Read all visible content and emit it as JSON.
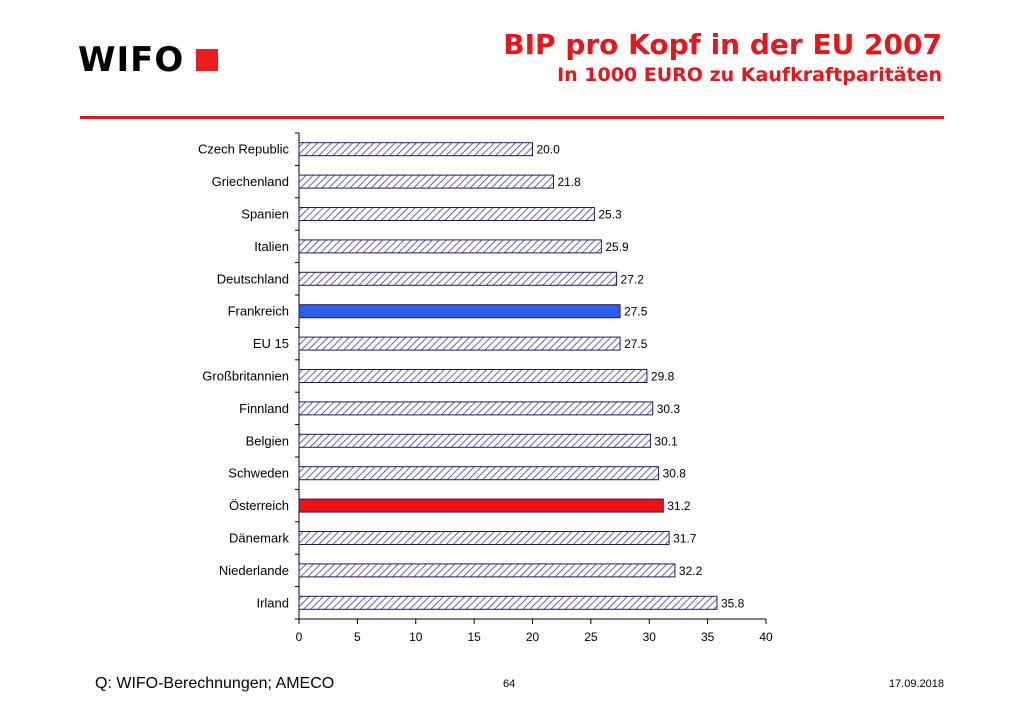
{
  "header": {
    "logo_text": "WIFO",
    "title": "BIP pro Kopf in der EU 2007",
    "subtitle": "In 1000 EURO zu Kaufkraftparitäten"
  },
  "colors": {
    "accent": "#e8151b",
    "bar_outline": "#1a1a6e",
    "hatch": "#3b3bb0",
    "highlight_blue": "#2d5ee8",
    "highlight_red": "#ee1111"
  },
  "chart_data": {
    "type": "bar",
    "orientation": "horizontal",
    "title": "BIP pro Kopf in der EU 2007",
    "subtitle": "In 1000 EURO zu Kaufkraftparitäten",
    "xlabel": "",
    "ylabel": "",
    "xlim": [
      0,
      40
    ],
    "xticks": [
      0,
      5,
      10,
      15,
      20,
      25,
      30,
      35,
      40
    ],
    "grid": false,
    "categories": [
      "Czech Republic",
      "Griechenland",
      "Spanien",
      "Italien",
      "Deutschland",
      "Frankreich",
      "EU 15",
      "Großbritannien",
      "Finnland",
      "Belgien",
      "Schweden",
      "Österreich",
      "Dänemark",
      "Niederlande",
      "Irland"
    ],
    "values": [
      20.0,
      21.8,
      25.3,
      25.9,
      27.2,
      27.5,
      27.5,
      29.8,
      30.3,
      30.1,
      30.8,
      31.2,
      31.7,
      32.2,
      35.8
    ],
    "value_labels": [
      "20.0",
      "21.8",
      "25.3",
      "25.9",
      "27.2",
      "27.5",
      "27.5",
      "29.8",
      "30.3",
      "30.1",
      "30.8",
      "31.2",
      "31.7",
      "32.2",
      "35.8"
    ],
    "highlights": {
      "Frankreich": "blue",
      "Österreich": "red"
    }
  },
  "footer": {
    "source": "Q: WIFO-Berechnungen; AMECO",
    "page": "64",
    "date": "17.09.2018"
  }
}
